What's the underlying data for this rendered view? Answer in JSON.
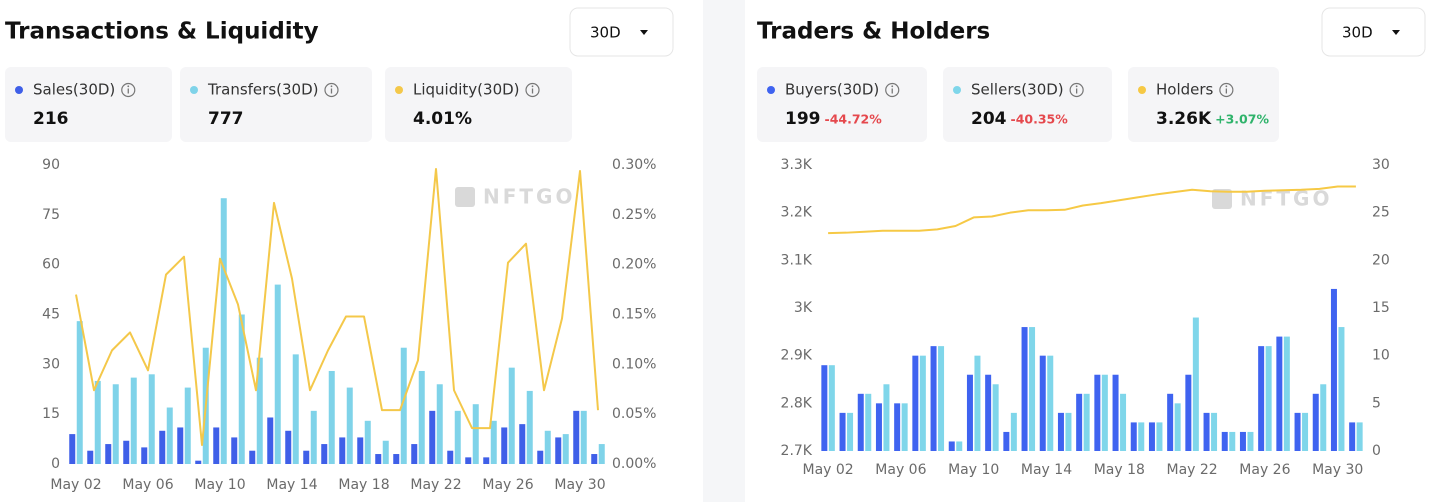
{
  "chart_data": [
    {
      "type": "combo",
      "title": "Transactions & Liquidity",
      "dropdown": "30D",
      "watermark": "NFTGO",
      "categories": [
        "May 02",
        null,
        null,
        null,
        "May 06",
        null,
        null,
        null,
        "May 10",
        null,
        null,
        null,
        "May 14",
        null,
        null,
        null,
        "May 18",
        null,
        null,
        null,
        "May 22",
        null,
        null,
        null,
        "May 26",
        null,
        null,
        null,
        "May 30",
        null
      ],
      "ylim": [
        0,
        90
      ],
      "yticks": [
        0,
        15,
        30,
        45,
        60,
        75,
        90
      ],
      "y2lim": [
        0,
        0.3
      ],
      "y2ticks": [
        {
          "value": 0,
          "label": "0.00%"
        },
        {
          "value": 0.05,
          "label": "0.05%"
        },
        {
          "value": 0.1,
          "label": "0.10%"
        },
        {
          "value": 0.15,
          "label": "0.15%"
        },
        {
          "value": 0.2,
          "label": "0.20%"
        },
        {
          "value": 0.25,
          "label": "0.25%"
        },
        {
          "value": 0.3,
          "label": "0.30%"
        }
      ],
      "grid": false,
      "series": [
        {
          "name": "Sales(30D)",
          "total": "216",
          "type": "bar",
          "axis": "y",
          "color": "#3f5fe8",
          "values": [
            9,
            4,
            6,
            7,
            5,
            10,
            11,
            1,
            11,
            8,
            4,
            14,
            10,
            4,
            6,
            8,
            8,
            3,
            3,
            6,
            16,
            4,
            2,
            2,
            11,
            12,
            4,
            8,
            16,
            3
          ]
        },
        {
          "name": "Transfers(30D)",
          "total": "777",
          "type": "bar",
          "axis": "y",
          "color": "#7fd3e9",
          "values": [
            43,
            25,
            24,
            26,
            27,
            17,
            23,
            35,
            80,
            45,
            32,
            54,
            33,
            16,
            28,
            23,
            13,
            7,
            35,
            28,
            24,
            16,
            18,
            13,
            29,
            22,
            10,
            9,
            16,
            6
          ]
        },
        {
          "name": "Liquidity(30D)",
          "total": "4.01%",
          "type": "line",
          "axis": "y2",
          "color": "#f4c84a",
          "values": [
            0.17,
            0.074,
            0.114,
            0.132,
            0.094,
            0.19,
            0.208,
            0.019,
            0.206,
            0.16,
            0.074,
            0.262,
            0.186,
            0.074,
            0.114,
            0.148,
            0.148,
            0.054,
            0.054,
            0.104,
            0.296,
            0.074,
            0.036,
            0.036,
            0.202,
            0.221,
            0.074,
            0.146,
            0.294,
            0.054
          ]
        }
      ]
    },
    {
      "type": "combo",
      "title": "Traders & Holders",
      "dropdown": "30D",
      "watermark": "NFTGO",
      "categories": [
        "May 02",
        null,
        null,
        null,
        "May 06",
        null,
        null,
        null,
        "May 10",
        null,
        null,
        null,
        "May 14",
        null,
        null,
        null,
        "May 18",
        null,
        null,
        null,
        "May 22",
        null,
        null,
        null,
        "May 26",
        null,
        null,
        null,
        "May 30",
        null
      ],
      "ylim": [
        2700,
        3300
      ],
      "yticks": [
        {
          "value": 2700,
          "label": "2.7K"
        },
        {
          "value": 2800,
          "label": "2.8K"
        },
        {
          "value": 2900,
          "label": "2.9K"
        },
        {
          "value": 3000,
          "label": "3K"
        },
        {
          "value": 3100,
          "label": "3.1K"
        },
        {
          "value": 3200,
          "label": "3.2K"
        },
        {
          "value": 3300,
          "label": "3.3K"
        }
      ],
      "y2lim": [
        0,
        30
      ],
      "y2ticks": [
        0,
        5,
        10,
        15,
        20,
        25,
        30
      ],
      "grid": false,
      "series": [
        {
          "name": "Buyers(30D)",
          "total": "199",
          "change": "-44.72%",
          "type": "bar",
          "axis": "y2",
          "color": "#3f63f0",
          "values": [
            9,
            4,
            6,
            5,
            5,
            10,
            11,
            1,
            8,
            8,
            2,
            13,
            10,
            4,
            6,
            8,
            8,
            3,
            3,
            6,
            8,
            4,
            2,
            2,
            11,
            12,
            4,
            6,
            17,
            3
          ]
        },
        {
          "name": "Sellers(30D)",
          "total": "204",
          "change": "-40.35%",
          "type": "bar",
          "axis": "y2",
          "color": "#7fd6ea",
          "values": [
            9,
            4,
            6,
            7,
            5,
            10,
            11,
            1,
            10,
            7,
            4,
            13,
            10,
            4,
            6,
            8,
            6,
            3,
            3,
            5,
            14,
            4,
            2,
            2,
            11,
            12,
            4,
            7,
            13,
            3
          ]
        },
        {
          "name": "Holders",
          "total": "3.26K",
          "change": "+3.07%",
          "type": "line",
          "axis": "y",
          "color": "#f6c945",
          "values": [
            3157,
            3158,
            3160,
            3162,
            3162,
            3162,
            3165,
            3172,
            3190,
            3192,
            3200,
            3205,
            3205,
            3206,
            3215,
            3220,
            3226,
            3232,
            3238,
            3243,
            3248,
            3245,
            3244,
            3244,
            3246,
            3247,
            3248,
            3250,
            3255,
            3255
          ]
        }
      ]
    }
  ]
}
